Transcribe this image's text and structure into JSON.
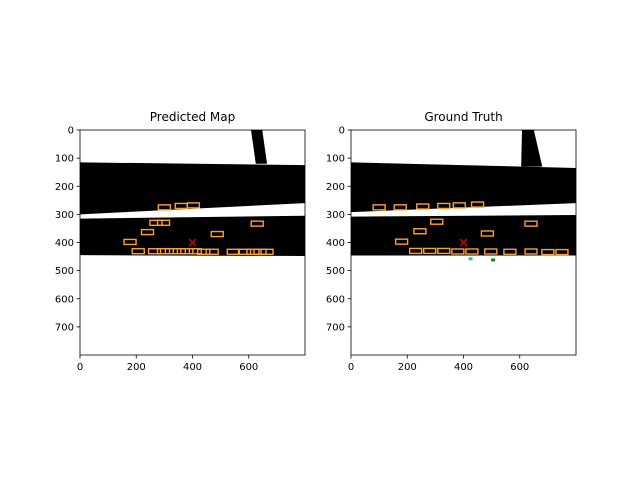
{
  "figure": {
    "background": "#ffffff",
    "road_color": "#000000",
    "box_color": "#ff9f2e",
    "ego_color": "#e00000"
  },
  "chart_data": [
    {
      "type": "map",
      "title": "Predicted Map",
      "xlim": [
        0,
        800
      ],
      "ylim": [
        800,
        0
      ],
      "x_ticks": [
        "0",
        "200",
        "400",
        "600"
      ],
      "y_ticks": [
        "0",
        "100",
        "200",
        "300",
        "400",
        "500",
        "600",
        "700"
      ],
      "road_regions": [
        {
          "name": "upper-road",
          "polygon": [
            [
              0,
              115
            ],
            [
              800,
              125
            ],
            [
              800,
              260
            ],
            [
              0,
              300
            ]
          ]
        },
        {
          "name": "lower-road",
          "polygon": [
            [
              0,
              315
            ],
            [
              800,
              305
            ],
            [
              800,
              448
            ],
            [
              0,
              445
            ]
          ]
        },
        {
          "name": "vertical-road",
          "polygon": [
            [
              608,
              0
            ],
            [
              648,
              0
            ],
            [
              665,
              120
            ],
            [
              625,
              120
            ]
          ]
        }
      ],
      "ego": {
        "x": 400,
        "y": 400
      },
      "boxes": [
        {
          "x": 300,
          "y": 275
        },
        {
          "x": 360,
          "y": 270
        },
        {
          "x": 403,
          "y": 268
        },
        {
          "x": 270,
          "y": 330
        },
        {
          "x": 297,
          "y": 330
        },
        {
          "x": 630,
          "y": 333
        },
        {
          "x": 240,
          "y": 363
        },
        {
          "x": 488,
          "y": 370
        },
        {
          "x": 178,
          "y": 398
        },
        {
          "x": 207,
          "y": 431
        },
        {
          "x": 265,
          "y": 431
        },
        {
          "x": 297,
          "y": 431
        },
        {
          "x": 325,
          "y": 431
        },
        {
          "x": 353,
          "y": 431
        },
        {
          "x": 380,
          "y": 431
        },
        {
          "x": 410,
          "y": 431
        },
        {
          "x": 440,
          "y": 433
        },
        {
          "x": 470,
          "y": 433
        },
        {
          "x": 545,
          "y": 433
        },
        {
          "x": 585,
          "y": 433
        },
        {
          "x": 615,
          "y": 433
        },
        {
          "x": 640,
          "y": 433
        },
        {
          "x": 665,
          "y": 433
        }
      ],
      "extra_markers": []
    },
    {
      "type": "map",
      "title": "Ground Truth",
      "xlim": [
        0,
        800
      ],
      "ylim": [
        800,
        0
      ],
      "x_ticks": [
        "0",
        "200",
        "400",
        "600"
      ],
      "y_ticks": [
        "0",
        "100",
        "200",
        "300",
        "400",
        "500",
        "600",
        "700"
      ],
      "road_regions": [
        {
          "name": "upper-road",
          "polygon": [
            [
              0,
              115
            ],
            [
              800,
              135
            ],
            [
              800,
              260
            ],
            [
              0,
              292
            ]
          ]
        },
        {
          "name": "lower-road",
          "polygon": [
            [
              0,
              308
            ],
            [
              800,
              302
            ],
            [
              800,
              446
            ],
            [
              0,
              446
            ]
          ]
        },
        {
          "name": "vertical-road",
          "polygon": [
            [
              608,
              0
            ],
            [
              650,
              0
            ],
            [
              680,
              130
            ],
            [
              605,
              130
            ]
          ]
        }
      ],
      "ego": {
        "x": 400,
        "y": 400
      },
      "boxes": [
        {
          "x": 100,
          "y": 275
        },
        {
          "x": 175,
          "y": 275
        },
        {
          "x": 255,
          "y": 272
        },
        {
          "x": 330,
          "y": 270
        },
        {
          "x": 385,
          "y": 268
        },
        {
          "x": 450,
          "y": 265
        },
        {
          "x": 305,
          "y": 326
        },
        {
          "x": 640,
          "y": 333
        },
        {
          "x": 245,
          "y": 360
        },
        {
          "x": 485,
          "y": 368
        },
        {
          "x": 180,
          "y": 397
        },
        {
          "x": 230,
          "y": 430
        },
        {
          "x": 280,
          "y": 430
        },
        {
          "x": 330,
          "y": 430
        },
        {
          "x": 380,
          "y": 432
        },
        {
          "x": 430,
          "y": 432
        },
        {
          "x": 497,
          "y": 432
        },
        {
          "x": 565,
          "y": 433
        },
        {
          "x": 640,
          "y": 432
        },
        {
          "x": 700,
          "y": 434
        },
        {
          "x": 750,
          "y": 434
        }
      ],
      "extra_markers": [
        {
          "x": 425,
          "y": 458,
          "color": "#20c0c0"
        },
        {
          "x": 505,
          "y": 462,
          "color": "#138a13"
        }
      ]
    }
  ]
}
